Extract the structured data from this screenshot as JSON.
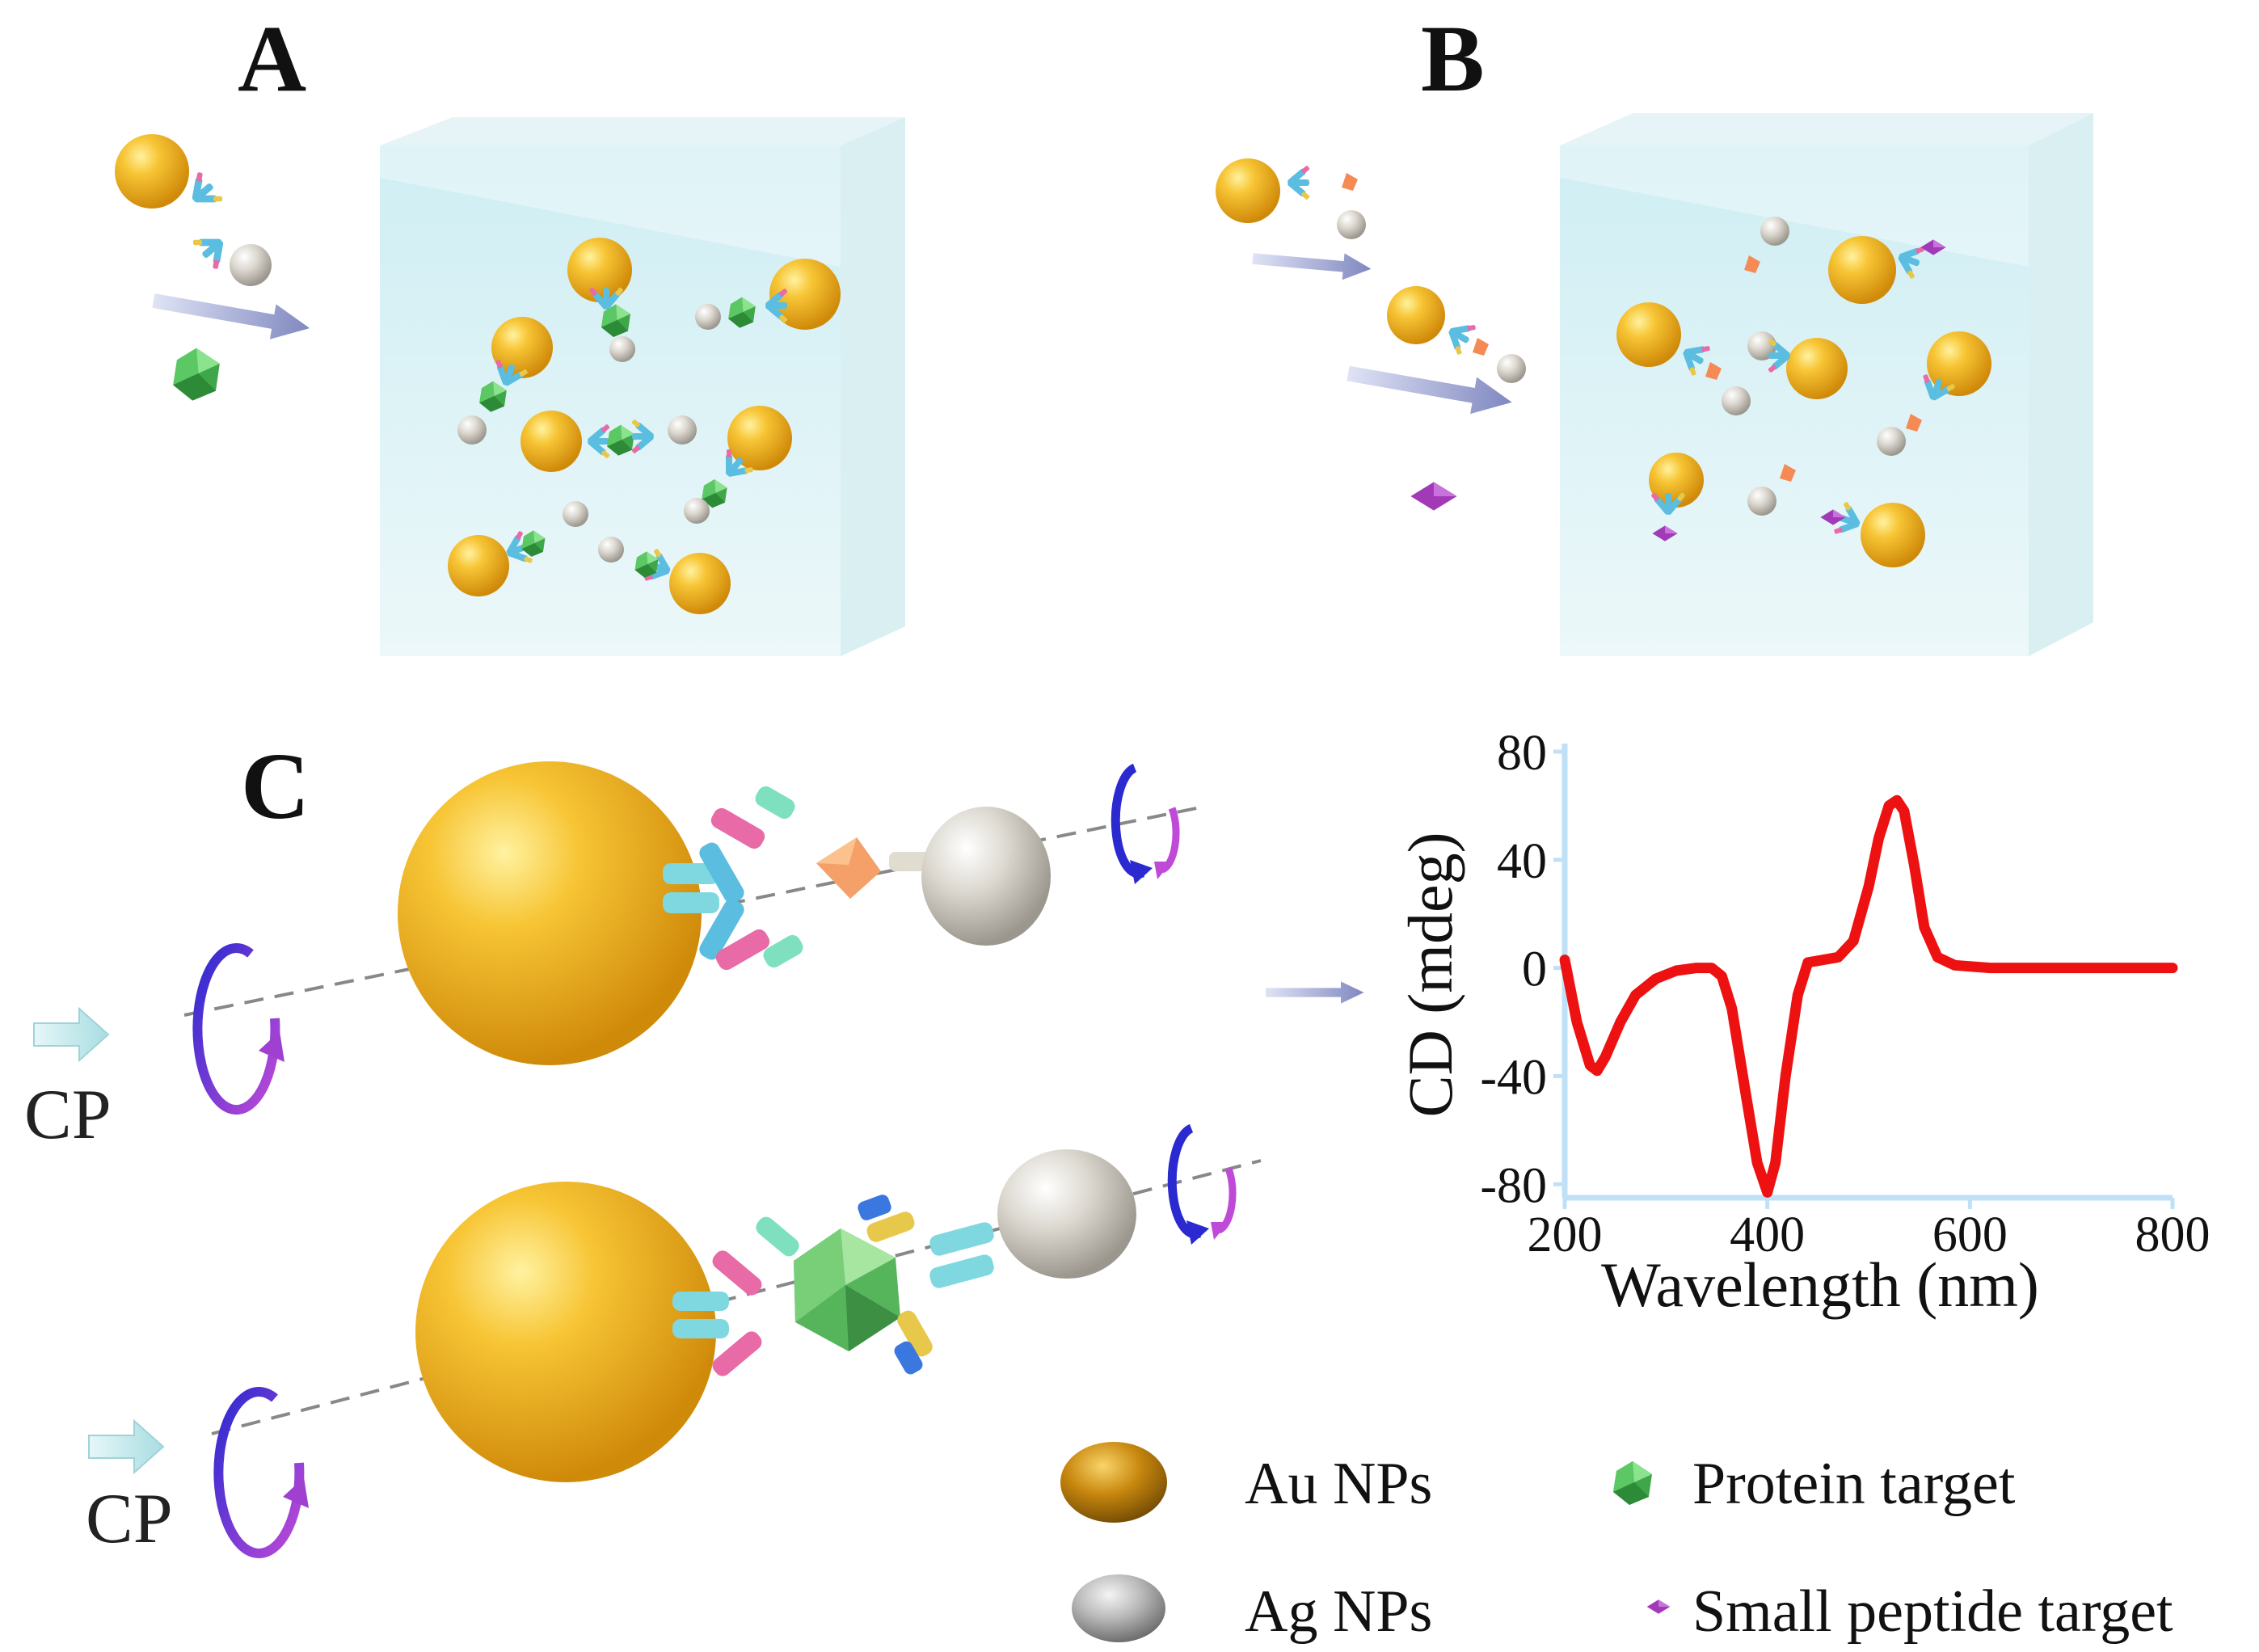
{
  "panels": {
    "a_label": "A",
    "b_label": "B",
    "c_label": "C"
  },
  "cp_label": "CP",
  "legend": {
    "au": "Au NPs",
    "ag": "Ag NPs",
    "protein": "Protein target",
    "peptide": "Small peptide target"
  },
  "colors": {
    "gold": "#f0b323",
    "silver": "#c8c4bc",
    "protein_green": "#4fbf54",
    "peptide_purple": "#a23ab8",
    "curve_red": "#ee1111",
    "axis_blue": "#bfe0f7",
    "circular_blue": "#2a2ad0",
    "circular_magenta": "#c04ad8"
  },
  "chart_data": {
    "type": "line",
    "xlabel": "Wavelength (nm)",
    "ylabel": "CD (mdeg)",
    "xlim": [
      200,
      800
    ],
    "ylim": [
      -85,
      80
    ],
    "xticks": [
      "200",
      "400",
      "600",
      "800"
    ],
    "yticks": [
      "80",
      "40",
      "0",
      "-40",
      "-80"
    ],
    "series": [
      {
        "x": [
          200,
          212,
          225,
          232,
          240,
          255,
          270,
          290,
          310,
          330,
          345,
          355,
          365,
          378,
          390,
          400,
          408,
          418,
          430,
          440,
          455,
          470,
          485,
          500,
          510,
          520,
          528,
          535,
          545,
          555,
          568,
          585,
          620,
          700,
          800
        ],
        "y": [
          3,
          -20,
          -36,
          -38,
          -33,
          -20,
          -10,
          -4,
          -1,
          0,
          0,
          -3,
          -15,
          -45,
          -72,
          -83,
          -72,
          -40,
          -10,
          2,
          3,
          4,
          10,
          30,
          48,
          60,
          62,
          58,
          38,
          15,
          4,
          1,
          0,
          0,
          0
        ]
      }
    ]
  }
}
